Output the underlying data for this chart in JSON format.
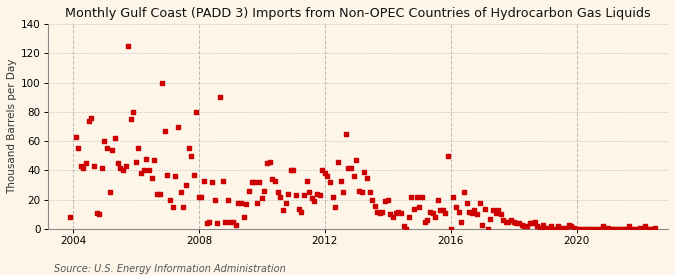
{
  "title": "Monthly Gulf Coast (PADD 3) Imports from Non-OPEC Countries of Hydrocarbon Gas Liquids",
  "ylabel": "Thousand Barrels per Day",
  "source": "Source: U.S. Energy Information Administration",
  "background_color": "#fdf6e8",
  "scatter_color": "#cc0000",
  "xlim": [
    2003.2,
    2022.9
  ],
  "ylim": [
    0,
    140
  ],
  "yticks": [
    0,
    20,
    40,
    60,
    80,
    100,
    120,
    140
  ],
  "xticks": [
    2004,
    2008,
    2012,
    2016,
    2020
  ],
  "title_fontsize": 9.2,
  "ylabel_fontsize": 7.5,
  "source_fontsize": 7.0,
  "marker_size": 5,
  "data_x": [
    2003.92,
    2004.08,
    2004.17,
    2004.25,
    2004.33,
    2004.42,
    2004.5,
    2004.58,
    2004.67,
    2004.75,
    2004.83,
    2004.92,
    2005.0,
    2005.08,
    2005.17,
    2005.25,
    2005.33,
    2005.42,
    2005.5,
    2005.58,
    2005.67,
    2005.75,
    2005.83,
    2005.92,
    2006.0,
    2006.08,
    2006.17,
    2006.25,
    2006.33,
    2006.42,
    2006.5,
    2006.58,
    2006.67,
    2006.75,
    2006.83,
    2006.92,
    2007.0,
    2007.08,
    2007.17,
    2007.25,
    2007.33,
    2007.42,
    2007.5,
    2007.58,
    2007.67,
    2007.75,
    2007.83,
    2007.92,
    2008.0,
    2008.08,
    2008.17,
    2008.25,
    2008.33,
    2008.42,
    2008.5,
    2008.58,
    2008.67,
    2008.75,
    2008.83,
    2008.92,
    2009.0,
    2009.08,
    2009.17,
    2009.25,
    2009.33,
    2009.42,
    2009.5,
    2009.58,
    2009.67,
    2009.75,
    2009.83,
    2009.92,
    2010.0,
    2010.08,
    2010.17,
    2010.25,
    2010.33,
    2010.42,
    2010.5,
    2010.58,
    2010.67,
    2010.75,
    2010.83,
    2010.92,
    2011.0,
    2011.08,
    2011.17,
    2011.25,
    2011.33,
    2011.42,
    2011.5,
    2011.58,
    2011.67,
    2011.75,
    2011.83,
    2011.92,
    2012.0,
    2012.08,
    2012.17,
    2012.25,
    2012.33,
    2012.42,
    2012.5,
    2012.58,
    2012.67,
    2012.75,
    2012.83,
    2012.92,
    2013.0,
    2013.08,
    2013.17,
    2013.25,
    2013.33,
    2013.42,
    2013.5,
    2013.58,
    2013.67,
    2013.75,
    2013.83,
    2013.92,
    2014.0,
    2014.08,
    2014.17,
    2014.25,
    2014.33,
    2014.42,
    2014.5,
    2014.58,
    2014.67,
    2014.75,
    2014.83,
    2014.92,
    2015.0,
    2015.08,
    2015.17,
    2015.25,
    2015.33,
    2015.42,
    2015.5,
    2015.58,
    2015.67,
    2015.75,
    2015.83,
    2015.92,
    2016.0,
    2016.08,
    2016.17,
    2016.25,
    2016.33,
    2016.42,
    2016.5,
    2016.58,
    2016.67,
    2016.75,
    2016.83,
    2016.92,
    2017.0,
    2017.08,
    2017.17,
    2017.25,
    2017.33,
    2017.42,
    2017.5,
    2017.58,
    2017.67,
    2017.75,
    2017.83,
    2017.92,
    2018.0,
    2018.08,
    2018.17,
    2018.25,
    2018.33,
    2018.42,
    2018.5,
    2018.58,
    2018.67,
    2018.75,
    2018.83,
    2018.92,
    2019.0,
    2019.08,
    2019.17,
    2019.25,
    2019.33,
    2019.42,
    2019.5,
    2019.58,
    2019.67,
    2019.75,
    2019.83,
    2019.92,
    2020.0,
    2020.08,
    2020.17,
    2020.25,
    2020.33,
    2020.42,
    2020.5,
    2020.58,
    2020.67,
    2020.75,
    2020.83,
    2020.92,
    2021.0,
    2021.08,
    2021.17,
    2021.25,
    2021.33,
    2021.42,
    2021.5,
    2021.58,
    2021.67,
    2021.75,
    2021.83,
    2021.92,
    2022.0,
    2022.08,
    2022.17,
    2022.25,
    2022.33,
    2022.42,
    2022.5
  ],
  "data_y": [
    8,
    63,
    55,
    43,
    42,
    45,
    74,
    76,
    43,
    11,
    10,
    42,
    60,
    55,
    25,
    54,
    62,
    45,
    42,
    40,
    43,
    125,
    75,
    80,
    46,
    55,
    38,
    40,
    48,
    40,
    35,
    47,
    24,
    24,
    100,
    67,
    37,
    20,
    15,
    36,
    70,
    25,
    15,
    30,
    55,
    50,
    37,
    80,
    22,
    22,
    33,
    4,
    5,
    32,
    20,
    4,
    90,
    33,
    5,
    20,
    5,
    5,
    3,
    18,
    18,
    8,
    17,
    26,
    32,
    32,
    18,
    32,
    21,
    26,
    45,
    46,
    34,
    33,
    25,
    22,
    13,
    18,
    24,
    40,
    40,
    23,
    14,
    12,
    23,
    33,
    25,
    21,
    19,
    24,
    23,
    40,
    38,
    36,
    32,
    22,
    15,
    46,
    33,
    25,
    65,
    42,
    42,
    36,
    47,
    26,
    25,
    39,
    35,
    25,
    20,
    16,
    12,
    11,
    12,
    19,
    20,
    10,
    8,
    11,
    12,
    11,
    2,
    0,
    8,
    22,
    14,
    22,
    15,
    22,
    5,
    6,
    12,
    11,
    8,
    20,
    13,
    13,
    11,
    50,
    0,
    22,
    15,
    12,
    5,
    25,
    18,
    12,
    11,
    13,
    10,
    18,
    3,
    14,
    0,
    7,
    13,
    11,
    13,
    10,
    6,
    5,
    5,
    6,
    5,
    4,
    4,
    3,
    2,
    2,
    4,
    4,
    5,
    2,
    1,
    3,
    0,
    1,
    2,
    0,
    0,
    2,
    1,
    1,
    0,
    3,
    2,
    1,
    0,
    0,
    0,
    0,
    0,
    0,
    0,
    0,
    0,
    0,
    2,
    0,
    1,
    0,
    0,
    0,
    0,
    0,
    0,
    0,
    2,
    0,
    0,
    0,
    1,
    0,
    2,
    0,
    0,
    0,
    1
  ]
}
